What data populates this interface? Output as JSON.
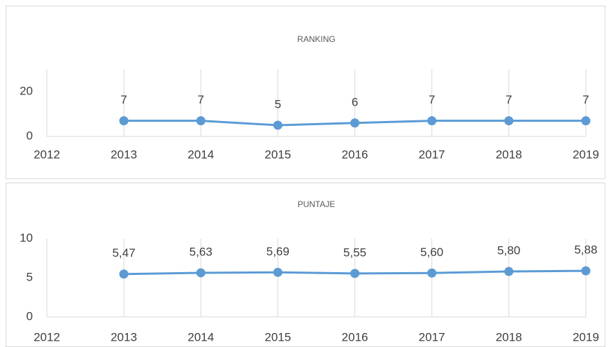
{
  "chart_data": [
    {
      "type": "line",
      "title": "RANKING",
      "x": [
        2013,
        2014,
        2015,
        2016,
        2017,
        2018,
        2019
      ],
      "series": [
        {
          "color": "#5b9bd5",
          "values": [
            7,
            7,
            5,
            6,
            7,
            7,
            7
          ]
        }
      ],
      "xlim": [
        2012,
        2019
      ],
      "xticks": [
        2012,
        2013,
        2014,
        2015,
        2016,
        2017,
        2018,
        2019
      ],
      "ylim": [
        0,
        30
      ],
      "yticks": [
        0,
        20
      ],
      "grid": true
    },
    {
      "type": "line",
      "title": "PUNTAJE",
      "x": [
        2013,
        2014,
        2015,
        2016,
        2017,
        2018,
        2019
      ],
      "series": [
        {
          "color": "#5b9bd5",
          "values": [
            5.47,
            5.63,
            5.69,
            5.55,
            5.6,
            5.8,
            5.88
          ],
          "value_labels": [
            "5,47",
            "5,63",
            "5,69",
            "5,55",
            "5,60",
            "5,80",
            "5,88"
          ]
        }
      ],
      "xlim": [
        2012,
        2019
      ],
      "xticks": [
        2012,
        2013,
        2014,
        2015,
        2016,
        2017,
        2018,
        2019
      ],
      "ylim": [
        0,
        10
      ],
      "yticks": [
        0,
        5,
        10
      ],
      "grid": true
    }
  ]
}
